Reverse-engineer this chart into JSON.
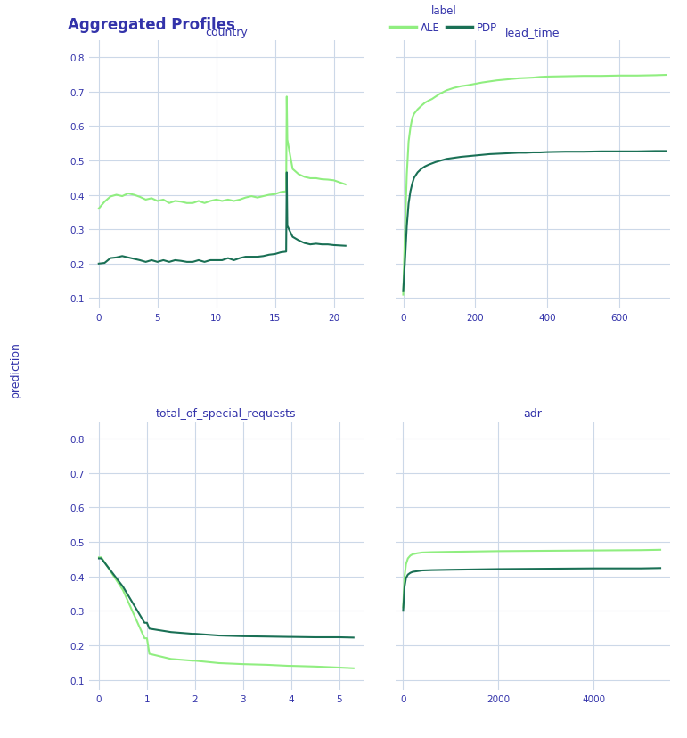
{
  "title": "Aggregated Profiles",
  "title_color": "#3333aa",
  "ylabel": "prediction",
  "bg_color": "#ffffff",
  "grid_color": "#ccd8e8",
  "ale_color": "#90ee80",
  "pdp_color": "#1a7055",
  "ale_label": "ALE",
  "pdp_label": "PDP",
  "legend_label": "label",
  "subplots": [
    {
      "title": "country",
      "xlim": [
        -0.8,
        22.5
      ],
      "ylim": [
        0.07,
        0.85
      ],
      "yticks": [
        0.1,
        0.2,
        0.3,
        0.4,
        0.5,
        0.6,
        0.7,
        0.8
      ],
      "xticks": [
        0,
        5,
        10,
        15,
        20
      ],
      "ale_x": [
        0,
        0.5,
        1,
        1.5,
        2,
        2.5,
        3,
        3.5,
        4,
        4.5,
        5,
        5.5,
        6,
        6.5,
        7,
        7.5,
        8,
        8.5,
        9,
        9.5,
        10,
        10.5,
        11,
        11.5,
        12,
        12.5,
        13,
        13.5,
        14,
        14.5,
        15,
        15.5,
        15.95,
        16.0,
        16.05,
        16.5,
        17,
        17.5,
        18,
        18.5,
        19,
        19.5,
        20,
        21
      ],
      "ale_y": [
        0.36,
        0.38,
        0.395,
        0.4,
        0.396,
        0.404,
        0.4,
        0.394,
        0.386,
        0.39,
        0.382,
        0.386,
        0.376,
        0.382,
        0.38,
        0.376,
        0.376,
        0.382,
        0.376,
        0.382,
        0.386,
        0.382,
        0.386,
        0.382,
        0.386,
        0.392,
        0.396,
        0.392,
        0.396,
        0.4,
        0.402,
        0.408,
        0.41,
        0.685,
        0.56,
        0.475,
        0.46,
        0.452,
        0.448,
        0.448,
        0.445,
        0.444,
        0.442,
        0.43
      ],
      "pdp_x": [
        0,
        0.5,
        1,
        1.5,
        2,
        2.5,
        3,
        3.5,
        4,
        4.5,
        5,
        5.5,
        6,
        6.5,
        7,
        7.5,
        8,
        8.5,
        9,
        9.5,
        10,
        10.5,
        11,
        11.5,
        12,
        12.5,
        13,
        13.5,
        14,
        14.5,
        15,
        15.5,
        15.95,
        16.0,
        16.05,
        16.5,
        17,
        17.5,
        18,
        18.5,
        19,
        19.5,
        20,
        21
      ],
      "pdp_y": [
        0.2,
        0.202,
        0.216,
        0.218,
        0.222,
        0.218,
        0.214,
        0.21,
        0.205,
        0.21,
        0.205,
        0.21,
        0.205,
        0.21,
        0.208,
        0.205,
        0.205,
        0.21,
        0.205,
        0.21,
        0.21,
        0.21,
        0.216,
        0.21,
        0.216,
        0.22,
        0.22,
        0.22,
        0.222,
        0.226,
        0.228,
        0.233,
        0.235,
        0.465,
        0.31,
        0.278,
        0.268,
        0.26,
        0.256,
        0.258,
        0.256,
        0.256,
        0.254,
        0.252
      ]
    },
    {
      "title": "lead_time",
      "xlim": [
        -20,
        740
      ],
      "ylim": [
        0.07,
        0.85
      ],
      "yticks": [
        0.1,
        0.2,
        0.3,
        0.4,
        0.5,
        0.6,
        0.7,
        0.8
      ],
      "xticks": [
        0,
        200,
        400,
        600
      ],
      "ale_x": [
        0,
        5,
        10,
        15,
        20,
        25,
        30,
        40,
        50,
        60,
        70,
        80,
        90,
        100,
        120,
        140,
        160,
        180,
        200,
        220,
        240,
        260,
        280,
        300,
        320,
        340,
        360,
        380,
        400,
        450,
        500,
        550,
        600,
        650,
        700,
        730
      ],
      "ale_y": [
        0.11,
        0.3,
        0.46,
        0.555,
        0.595,
        0.622,
        0.635,
        0.648,
        0.658,
        0.667,
        0.673,
        0.678,
        0.685,
        0.692,
        0.703,
        0.71,
        0.715,
        0.718,
        0.722,
        0.726,
        0.729,
        0.732,
        0.734,
        0.736,
        0.738,
        0.739,
        0.74,
        0.742,
        0.743,
        0.744,
        0.745,
        0.745,
        0.746,
        0.746,
        0.747,
        0.748
      ],
      "pdp_x": [
        0,
        5,
        10,
        15,
        20,
        25,
        30,
        40,
        50,
        60,
        70,
        80,
        90,
        100,
        120,
        140,
        160,
        180,
        200,
        220,
        240,
        260,
        280,
        300,
        320,
        340,
        360,
        380,
        400,
        450,
        500,
        550,
        600,
        650,
        700,
        730
      ],
      "pdp_y": [
        0.12,
        0.21,
        0.31,
        0.375,
        0.41,
        0.432,
        0.449,
        0.465,
        0.475,
        0.482,
        0.487,
        0.491,
        0.495,
        0.498,
        0.504,
        0.507,
        0.51,
        0.512,
        0.514,
        0.516,
        0.518,
        0.519,
        0.52,
        0.521,
        0.522,
        0.522,
        0.523,
        0.523,
        0.524,
        0.525,
        0.525,
        0.526,
        0.526,
        0.526,
        0.527,
        0.527
      ]
    },
    {
      "title": "total_of_special_requests",
      "xlim": [
        -0.2,
        5.5
      ],
      "ylim": [
        0.07,
        0.85
      ],
      "yticks": [
        0.1,
        0.2,
        0.3,
        0.4,
        0.5,
        0.6,
        0.7,
        0.8
      ],
      "xticks": [
        0,
        1,
        2,
        3,
        4,
        5
      ],
      "ale_x": [
        0,
        0.05,
        0.5,
        0.95,
        1.0,
        1.05,
        1.5,
        1.95,
        2.0,
        2.5,
        3.0,
        3.5,
        3.95,
        4.0,
        4.5,
        5.0,
        5.3
      ],
      "ale_y": [
        0.455,
        0.455,
        0.36,
        0.22,
        0.22,
        0.175,
        0.16,
        0.155,
        0.155,
        0.148,
        0.145,
        0.143,
        0.14,
        0.14,
        0.138,
        0.135,
        0.133
      ],
      "pdp_x": [
        0,
        0.05,
        0.5,
        0.95,
        1.0,
        1.05,
        1.5,
        1.95,
        2.0,
        2.5,
        3.0,
        3.5,
        3.95,
        4.0,
        4.5,
        5.0,
        5.3
      ],
      "pdp_y": [
        0.452,
        0.452,
        0.37,
        0.265,
        0.265,
        0.248,
        0.238,
        0.233,
        0.233,
        0.228,
        0.226,
        0.225,
        0.224,
        0.224,
        0.223,
        0.223,
        0.222
      ]
    },
    {
      "title": "adr",
      "xlim": [
        -150,
        5600
      ],
      "ylim": [
        0.07,
        0.85
      ],
      "yticks": [
        0.1,
        0.2,
        0.3,
        0.4,
        0.5,
        0.6,
        0.7,
        0.8
      ],
      "xticks": [
        0,
        2000,
        4000
      ],
      "ale_x": [
        0,
        30,
        60,
        100,
        150,
        200,
        300,
        400,
        600,
        1000,
        1500,
        2000,
        3000,
        4000,
        5000,
        5400
      ],
      "ale_y": [
        0.31,
        0.4,
        0.435,
        0.452,
        0.46,
        0.464,
        0.467,
        0.469,
        0.47,
        0.471,
        0.472,
        0.473,
        0.474,
        0.475,
        0.476,
        0.477
      ],
      "pdp_x": [
        0,
        30,
        60,
        100,
        150,
        200,
        300,
        400,
        600,
        1000,
        1500,
        2000,
        3000,
        4000,
        5000,
        5400
      ],
      "pdp_y": [
        0.3,
        0.37,
        0.395,
        0.405,
        0.41,
        0.413,
        0.415,
        0.417,
        0.418,
        0.419,
        0.42,
        0.421,
        0.422,
        0.423,
        0.423,
        0.424
      ]
    }
  ]
}
